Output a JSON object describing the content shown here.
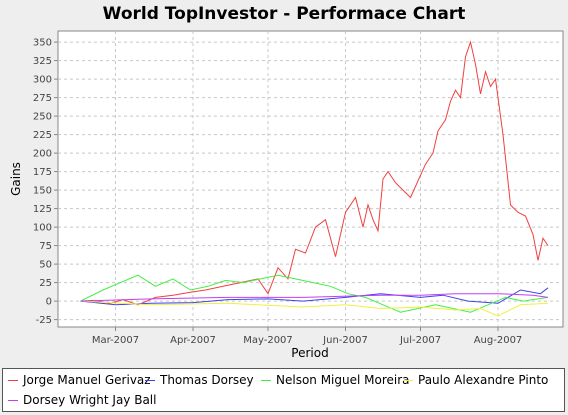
{
  "chart_data": {
    "type": "line",
    "title": "World TopInvestor - Performace Chart",
    "xlabel": "Period",
    "ylabel": "Gains",
    "x_ticks": [
      {
        "date": "2007-03-01",
        "label": "Mar-2007"
      },
      {
        "date": "2007-04-01",
        "label": "Apr-2007"
      },
      {
        "date": "2007-05-01",
        "label": "May-2007"
      },
      {
        "date": "2007-06-01",
        "label": "Jun-2007"
      },
      {
        "date": "2007-07-01",
        "label": "Jul-2007"
      },
      {
        "date": "2007-08-01",
        "label": "Aug-2007"
      }
    ],
    "xlim": [
      "2007-02-06",
      "2007-08-27"
    ],
    "ylim": [
      -35,
      365
    ],
    "y_ticks": [
      -25,
      0,
      25,
      50,
      75,
      100,
      125,
      150,
      175,
      200,
      225,
      250,
      275,
      300,
      325,
      350
    ],
    "grid": true,
    "legend_position": "bottom",
    "series": [
      {
        "name": "Jorge Manuel Gerivaz",
        "color": "#f04040",
        "x": [
          "2007-02-15",
          "2007-02-20",
          "2007-02-27",
          "2007-03-04",
          "2007-03-10",
          "2007-03-17",
          "2007-03-24",
          "2007-03-31",
          "2007-04-06",
          "2007-04-13",
          "2007-04-20",
          "2007-04-27",
          "2007-05-01",
          "2007-05-05",
          "2007-05-09",
          "2007-05-12",
          "2007-05-16",
          "2007-05-20",
          "2007-05-24",
          "2007-05-28",
          "2007-06-01",
          "2007-06-05",
          "2007-06-08",
          "2007-06-10",
          "2007-06-12",
          "2007-06-14",
          "2007-06-16",
          "2007-06-18",
          "2007-06-21",
          "2007-06-24",
          "2007-06-27",
          "2007-07-01",
          "2007-07-03",
          "2007-07-06",
          "2007-07-08",
          "2007-07-11",
          "2007-07-13",
          "2007-07-15",
          "2007-07-17",
          "2007-07-19",
          "2007-07-21",
          "2007-07-23",
          "2007-07-25",
          "2007-07-27",
          "2007-07-29",
          "2007-07-31",
          "2007-08-03",
          "2007-08-06",
          "2007-08-09",
          "2007-08-12",
          "2007-08-15",
          "2007-08-17",
          "2007-08-19",
          "2007-08-21"
        ],
        "values": [
          0,
          1,
          -3,
          2,
          -5,
          5,
          8,
          12,
          15,
          20,
          25,
          30,
          10,
          45,
          30,
          70,
          65,
          100,
          110,
          60,
          120,
          140,
          100,
          130,
          110,
          95,
          165,
          175,
          160,
          150,
          140,
          170,
          185,
          200,
          230,
          245,
          270,
          285,
          275,
          330,
          350,
          320,
          280,
          310,
          290,
          300,
          225,
          130,
          120,
          115,
          90,
          55,
          85,
          75
        ]
      },
      {
        "name": "Thomas Dorsey",
        "color": "#4040f0",
        "x": [
          "2007-02-15",
          "2007-03-01",
          "2007-03-15",
          "2007-04-01",
          "2007-04-15",
          "2007-05-01",
          "2007-05-15",
          "2007-06-01",
          "2007-06-15",
          "2007-07-01",
          "2007-07-10",
          "2007-07-20",
          "2007-08-01",
          "2007-08-10",
          "2007-08-18",
          "2007-08-21"
        ],
        "values": [
          0,
          -5,
          -3,
          -2,
          2,
          3,
          0,
          5,
          10,
          5,
          8,
          0,
          -3,
          15,
          10,
          18
        ]
      },
      {
        "name": "Nelson Miguel Moreira",
        "color": "#40f040",
        "x": [
          "2007-02-15",
          "2007-02-24",
          "2007-03-03",
          "2007-03-10",
          "2007-03-17",
          "2007-03-24",
          "2007-03-31",
          "2007-04-07",
          "2007-04-14",
          "2007-04-21",
          "2007-04-28",
          "2007-05-05",
          "2007-05-12",
          "2007-05-19",
          "2007-05-26",
          "2007-06-02",
          "2007-06-09",
          "2007-06-16",
          "2007-06-23",
          "2007-06-30",
          "2007-07-07",
          "2007-07-14",
          "2007-07-21",
          "2007-07-28",
          "2007-08-04",
          "2007-08-11",
          "2007-08-21"
        ],
        "values": [
          0,
          15,
          25,
          35,
          20,
          30,
          15,
          20,
          28,
          25,
          30,
          35,
          30,
          25,
          20,
          10,
          5,
          -5,
          -15,
          -10,
          -5,
          -10,
          -15,
          -5,
          5,
          0,
          5
        ]
      },
      {
        "name": "Paulo Alexandre Pinto",
        "color": "#f0f040",
        "x": [
          "2007-02-15",
          "2007-03-15",
          "2007-04-15",
          "2007-05-15",
          "2007-06-01",
          "2007-06-15",
          "2007-07-01",
          "2007-07-15",
          "2007-07-25",
          "2007-08-01",
          "2007-08-10",
          "2007-08-21"
        ],
        "values": [
          0,
          -5,
          -3,
          -8,
          -5,
          -10,
          -8,
          -12,
          -10,
          -20,
          -5,
          -3
        ]
      },
      {
        "name": "Dorsey Wright Jay Ball",
        "color": "#c040f0",
        "x": [
          "2007-02-15",
          "2007-03-15",
          "2007-04-15",
          "2007-05-15",
          "2007-06-15",
          "2007-07-01",
          "2007-07-15",
          "2007-08-01",
          "2007-08-15",
          "2007-08-21"
        ],
        "values": [
          0,
          3,
          5,
          5,
          8,
          8,
          10,
          10,
          8,
          5
        ]
      }
    ]
  }
}
